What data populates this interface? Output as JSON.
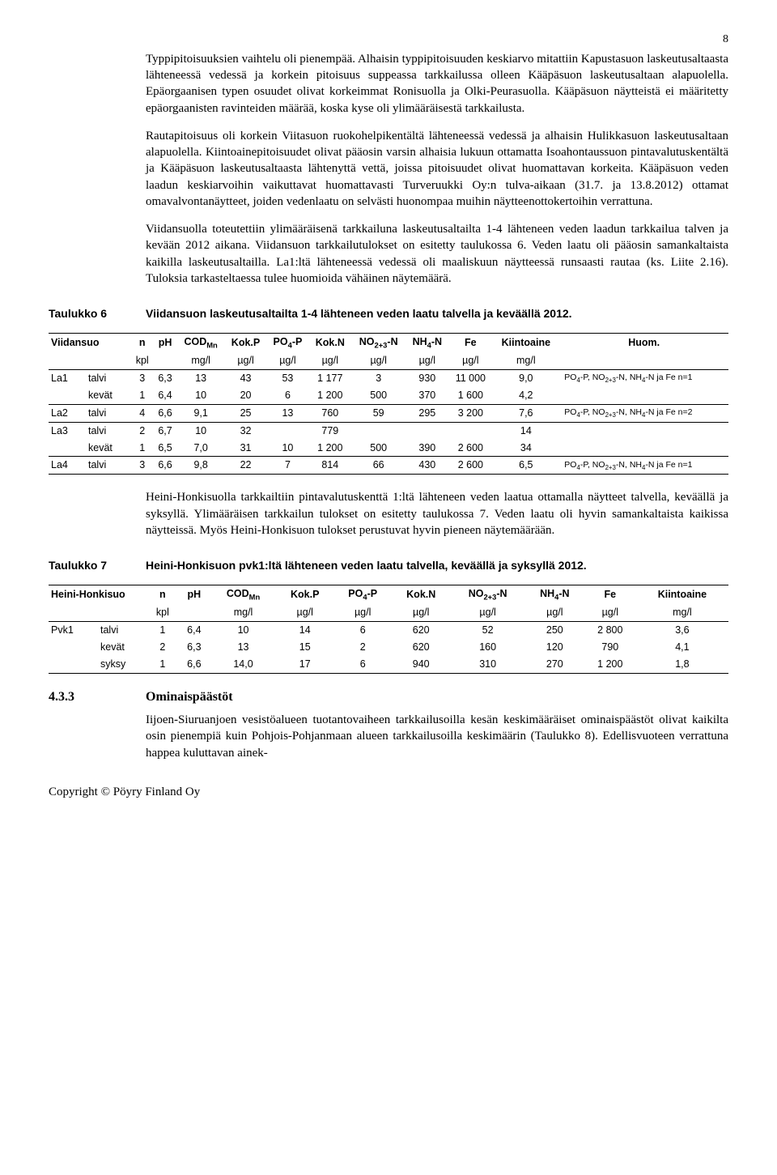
{
  "page_number": "8",
  "paragraphs": {
    "p1": "Typpipitoisuuksien vaihtelu oli pienempää. Alhaisin typpipitoisuuden keskiarvo mitattiin Kapustasuon laskeutusaltaasta lähteneessä vedessä ja korkein pitoisuus suppeassa tarkkailussa olleen Kääpäsuon laskeutusaltaan alapuolella. Epäorgaanisen typen osuudet olivat korkeimmat Ronisuolla ja Olki-Peurasuolla. Kääpäsuon näytteistä ei määritetty epäorgaanisten ravinteiden määrää, koska kyse oli ylimääräisestä tarkkailusta.",
    "p2": "Rautapitoisuus oli korkein Viitasuon ruokohelpikentältä lähteneessä vedessä ja alhaisin Hulikkasuon laskeutusaltaan alapuolella. Kiintoainepitoisuudet olivat pääosin varsin alhaisia lukuun ottamatta Isoahontaussuon pintavalutuskentältä ja Kääpäsuon laskeutusaltaasta lähtenyttä vettä, joissa pitoisuudet olivat huomattavan korkeita. Kääpäsuon veden laadun keskiarvoihin vaikuttavat huomattavasti Turveruukki Oy:n tulva-aikaan (31.7. ja 13.8.2012) ottamat omavalvontanäytteet, joiden vedenlaatu on selvästi huonompaa muihin näytteenottokertoihin verrattuna.",
    "p3": "Viidansuolla toteutettiin ylimääräisenä tarkkailuna laskeutusaltailta 1-4 lähteneen veden laadun tarkkailua talven ja kevään 2012 aikana. Viidansuon tarkkailutulokset on esitetty taulukossa 6. Veden laatu oli pääosin samankaltaista kaikilla laskeutusaltailla. La1:ltä lähteneessä vedessä oli maaliskuun näytteessä runsaasti rautaa (ks. Liite 2.16). Tuloksia tarkasteltaessa tulee huomioida vähäinen näytemäärä.",
    "p4": "Heini-Honkisuolla tarkkailtiin pintavalutuskenttä 1:ltä lähteneen veden laatua ottamalla näytteet talvella, keväällä ja syksyllä. Ylimääräisen tarkkailun tulokset on esitetty taulukossa 7. Veden laatu oli hyvin samankaltaista kaikissa näytteissä. Myös Heini-Honkisuon tulokset perustuvat hyvin pieneen näytemäärään.",
    "p5": "Iijoen-Siuruanjoen vesistöalueen tuotantovaiheen tarkkailusoilla kesän keskimääräiset ominaispäästöt olivat kaikilta osin pienempiä kuin Pohjois-Pohjanmaan alueen tarkkailusoilla keskimäärin (Taulukko 8). Edellisvuoteen verrattuna happea kuluttavan ainek-"
  },
  "table6": {
    "label": "Taulukko 6",
    "caption": "Viidansuon laskeutusaltailta 1-4 lähteneen veden laatu talvella ja keväällä 2012.",
    "site_header": "Viidansuo",
    "headers": [
      "n",
      "pH",
      "COD_Mn",
      "Kok.P",
      "PO4-P",
      "Kok.N",
      "NO2+3-N",
      "NH4-N",
      "Fe",
      "Kiintoaine",
      "Huom."
    ],
    "units": [
      "kpl",
      "",
      "mg/l",
      "µg/l",
      "µg/l",
      "µg/l",
      "µg/l",
      "µg/l",
      "µg/l",
      "mg/l",
      ""
    ],
    "groups": [
      {
        "label": "La1",
        "rows": [
          {
            "season": "talvi",
            "n": "3",
            "pH": "6,3",
            "cod": "13",
            "kokp": "43",
            "po4": "53",
            "kokn": "1 177",
            "no23": "3",
            "nh4": "930",
            "fe": "11 000",
            "kiinto": "9,0",
            "huom": "PO4-P, NO2+3-N, NH4-N ja Fe n=1"
          },
          {
            "season": "kevät",
            "n": "1",
            "pH": "6,4",
            "cod": "10",
            "kokp": "20",
            "po4": "6",
            "kokn": "1 200",
            "no23": "500",
            "nh4": "370",
            "fe": "1 600",
            "kiinto": "4,2",
            "huom": ""
          }
        ]
      },
      {
        "label": "La2",
        "rows": [
          {
            "season": "talvi",
            "n": "4",
            "pH": "6,6",
            "cod": "9,1",
            "kokp": "25",
            "po4": "13",
            "kokn": "760",
            "no23": "59",
            "nh4": "295",
            "fe": "3 200",
            "kiinto": "7,6",
            "huom": "PO4-P, NO2+3-N, NH4-N ja Fe n=2"
          }
        ]
      },
      {
        "label": "La3",
        "rows": [
          {
            "season": "talvi",
            "n": "2",
            "pH": "6,7",
            "cod": "10",
            "kokp": "32",
            "po4": "",
            "kokn": "779",
            "no23": "",
            "nh4": "",
            "fe": "",
            "kiinto": "14",
            "huom": ""
          },
          {
            "season": "kevät",
            "n": "1",
            "pH": "6,5",
            "cod": "7,0",
            "kokp": "31",
            "po4": "10",
            "kokn": "1 200",
            "no23": "500",
            "nh4": "390",
            "fe": "2 600",
            "kiinto": "34",
            "huom": ""
          }
        ]
      },
      {
        "label": "La4",
        "rows": [
          {
            "season": "talvi",
            "n": "3",
            "pH": "6,6",
            "cod": "9,8",
            "kokp": "22",
            "po4": "7",
            "kokn": "814",
            "no23": "66",
            "nh4": "430",
            "fe": "2 600",
            "kiinto": "6,5",
            "huom": "PO4-P, NO2+3-N, NH4-N ja Fe n=1"
          }
        ]
      }
    ]
  },
  "table7": {
    "label": "Taulukko 7",
    "caption": "Heini-Honkisuon pvk1:ltä lähteneen veden laatu talvella, keväällä ja syksyllä 2012.",
    "site_header": "Heini-Honkisuo",
    "headers": [
      "n",
      "pH",
      "COD_Mn",
      "Kok.P",
      "PO4-P",
      "Kok.N",
      "NO2+3-N",
      "NH4-N",
      "Fe",
      "Kiintoaine"
    ],
    "units": [
      "kpl",
      "",
      "mg/l",
      "µg/l",
      "µg/l",
      "µg/l",
      "µg/l",
      "µg/l",
      "µg/l",
      "mg/l"
    ],
    "group_label": "Pvk1",
    "rows": [
      {
        "season": "talvi",
        "n": "1",
        "pH": "6,4",
        "cod": "10",
        "kokp": "14",
        "po4": "6",
        "kokn": "620",
        "no23": "52",
        "nh4": "250",
        "fe": "2 800",
        "kiinto": "3,6"
      },
      {
        "season": "kevät",
        "n": "2",
        "pH": "6,3",
        "cod": "13",
        "kokp": "15",
        "po4": "2",
        "kokn": "620",
        "no23": "160",
        "nh4": "120",
        "fe": "790",
        "kiinto": "4,1"
      },
      {
        "season": "syksy",
        "n": "1",
        "pH": "6,6",
        "cod": "14,0",
        "kokp": "17",
        "po4": "6",
        "kokn": "940",
        "no23": "310",
        "nh4": "270",
        "fe": "1 200",
        "kiinto": "1,8"
      }
    ]
  },
  "section": {
    "number": "4.3.3",
    "title": "Ominaispäästöt"
  },
  "copyright": "Copyright © Pöyry Finland Oy"
}
